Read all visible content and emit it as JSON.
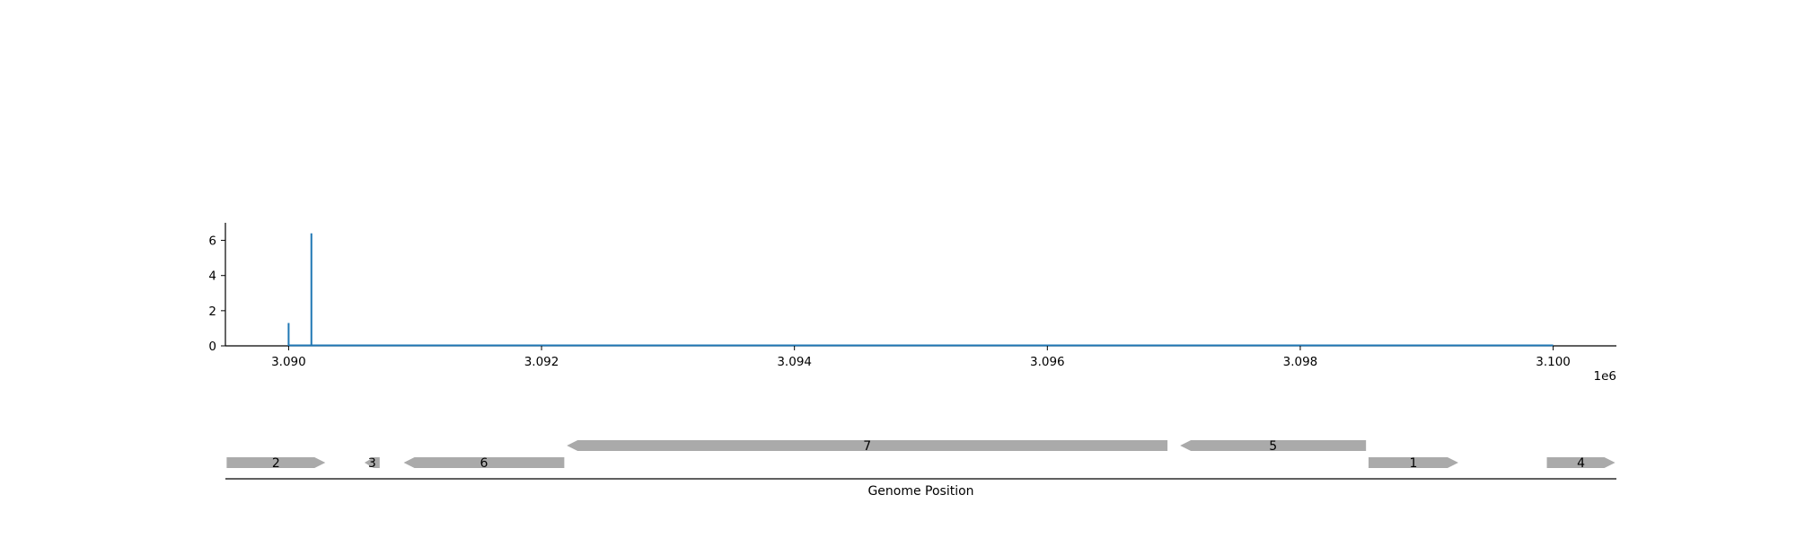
{
  "chart_data": [
    {
      "type": "bar",
      "x": [
        3090000,
        3090180
      ],
      "values": [
        1.3,
        6.4
      ],
      "baseline_range": [
        3090000,
        3100000
      ],
      "xlim": [
        3089500,
        3100500
      ],
      "ylim": [
        0,
        7
      ],
      "xticks": [
        3090000,
        3092000,
        3094000,
        3096000,
        3098000,
        3100000
      ],
      "xtick_labels": [
        "3.090",
        "3.092",
        "3.094",
        "3.096",
        "3.098",
        "3.100"
      ],
      "yticks": [
        0,
        2,
        4,
        6
      ],
      "ytick_labels": [
        "0",
        "2",
        "4",
        "6"
      ],
      "offset_text": "1e6",
      "color": "#1f77b4",
      "grid": false
    },
    {
      "type": "gene-track",
      "xlabel": "Genome Position",
      "color": "#aaaaaa",
      "genes": [
        {
          "label": "2",
          "start": 3089510,
          "end": 3090290,
          "strand": "+",
          "level": 0
        },
        {
          "label": "3",
          "start": 3090600,
          "end": 3090720,
          "strand": "-",
          "level": 0
        },
        {
          "label": "6",
          "start": 3090910,
          "end": 3092180,
          "strand": "-",
          "level": 0
        },
        {
          "label": "7",
          "start": 3092200,
          "end": 3096950,
          "strand": "-",
          "level": 1
        },
        {
          "label": "5",
          "start": 3097050,
          "end": 3098520,
          "strand": "-",
          "level": 1
        },
        {
          "label": "1",
          "start": 3098540,
          "end": 3099250,
          "strand": "+",
          "level": 0
        },
        {
          "label": "4",
          "start": 3099950,
          "end": 3100490,
          "strand": "+",
          "level": 0
        }
      ]
    }
  ]
}
